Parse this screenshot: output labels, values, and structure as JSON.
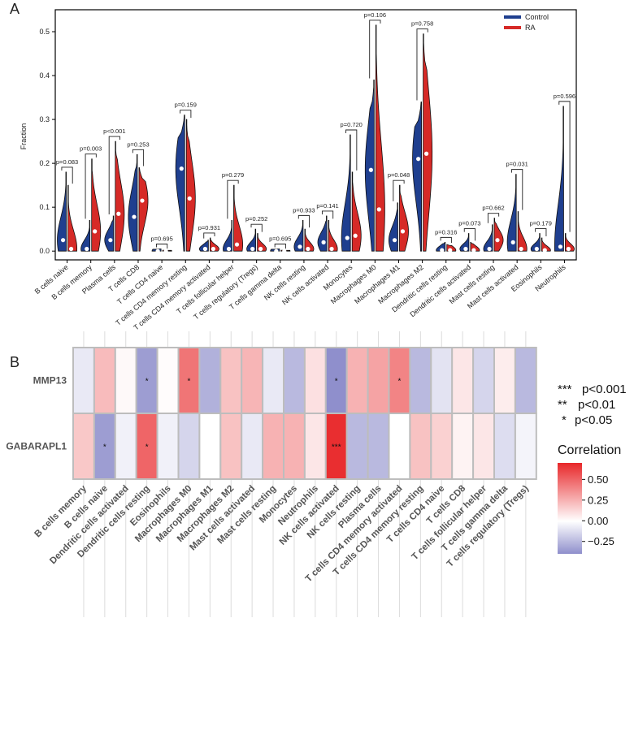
{
  "panels": {
    "a_label": "A",
    "b_label": "B"
  },
  "violin_legend": [
    {
      "name": "Control",
      "color": "#1f3f8f"
    },
    {
      "name": "RA",
      "color": "#d62a27"
    }
  ],
  "colors": {
    "control": "#1f3f8f",
    "ra": "#d62a27",
    "grid": "#dcdcdc"
  },
  "chart_data": [
    {
      "type": "violin",
      "title": "",
      "ylabel": "Fraction",
      "ylim": [
        -0.02,
        0.55
      ],
      "yticks": [
        "0.0",
        "0.1",
        "0.2",
        "0.3",
        "0.4",
        "0.5"
      ],
      "ytick_values": [
        0,
        0.1,
        0.2,
        0.3,
        0.4,
        0.5
      ],
      "groups": [
        "B cells naive",
        "B cells memory",
        "Plasma cells",
        "T cells CD8",
        "T cells CD4 naive",
        "T cells CD4 memory resting",
        "T cells CD4 memory activated",
        "T cells follicular helper",
        "T cells regulatory (Tregs)",
        "T cells gamma delta",
        "NK cells resting",
        "NK cells activated",
        "Monocytes",
        "Macrophages M0",
        "Macrophages M1",
        "Macrophages M2",
        "Dendritic cells resting",
        "Dendritic cells activated",
        "Mast cells resting",
        "Mast cells activated",
        "Eosinophils",
        "Neutrophils"
      ],
      "pvalues": [
        "p=0.083",
        "p=0.003",
        "p<0.001",
        "p=0.253",
        "p=0.695",
        "p=0.159",
        "p=0.931",
        "p=0.279",
        "p=0.252",
        "p=0.695",
        "p=0.933",
        "p=0.141",
        "p=0.720",
        "p=0.106",
        "p=0.048",
        "p=0.758",
        "p=0.316",
        "p=0.073",
        "p=0.662",
        "p=0.031",
        "p=0.179",
        "p=0.596"
      ],
      "control_max": [
        0.18,
        0.07,
        0.08,
        0.22,
        0.005,
        0.31,
        0.025,
        0.07,
        0.05,
        0.005,
        0.07,
        0.08,
        0.265,
        0.39,
        0.11,
        0.34,
        0.02,
        0.04,
        0.06,
        0.175,
        0.04,
        0.33
      ],
      "control_median": [
        0.025,
        0.005,
        0.025,
        0.078,
        0.0,
        0.188,
        0.005,
        0.005,
        0.005,
        0.0,
        0.01,
        0.02,
        0.03,
        0.185,
        0.025,
        0.21,
        0.002,
        0.005,
        0.005,
        0.02,
        0.005,
        0.01
      ],
      "ra_max": [
        0.15,
        0.21,
        0.25,
        0.19,
        0.002,
        0.3,
        0.03,
        0.15,
        0.04,
        0.002,
        0.05,
        0.07,
        0.18,
        0.515,
        0.15,
        0.495,
        0.015,
        0.02,
        0.075,
        0.09,
        0.03,
        0.04
      ],
      "ra_median": [
        0.005,
        0.045,
        0.085,
        0.115,
        0.0,
        0.12,
        0.005,
        0.015,
        0.005,
        0.0,
        0.005,
        0.005,
        0.035,
        0.095,
        0.045,
        0.222,
        0.002,
        0.002,
        0.025,
        0.005,
        0.002,
        0.005
      ]
    },
    {
      "type": "heatmap",
      "title": "",
      "rows": [
        "MMP13",
        "GABARAPL1"
      ],
      "columns": [
        "B cells memory",
        "B cells naive",
        "Dendritic cells activated",
        "Dendritic cells resting",
        "Eosinophils",
        "Macrophages M0",
        "Macrophages M1",
        "Macrophages M2",
        "Mast cells activated",
        "Mast cells resting",
        "Monocytes",
        "Neutrophils",
        "NK cells activated",
        "NK cells resting",
        "Plasma cells",
        "T cells CD4 memory activated",
        "T cells CD4 memory resting",
        "T cells CD4 naive",
        "T cells CD8",
        "T cells follicular helper",
        "T cells gamma delta",
        "T cells regulatory (Tregs)"
      ],
      "values": [
        [
          -0.08,
          0.22,
          0.02,
          -0.35,
          0.01,
          0.45,
          -0.28,
          0.2,
          0.24,
          -0.08,
          -0.25,
          0.1,
          -0.4,
          0.25,
          0.3,
          0.4,
          -0.25,
          -0.1,
          0.08,
          -0.15,
          0.06,
          -0.25
        ],
        [
          0.18,
          -0.35,
          -0.05,
          0.5,
          -0.05,
          -0.15,
          0.0,
          0.2,
          -0.08,
          0.25,
          0.25,
          0.08,
          0.68,
          -0.25,
          -0.25,
          0.0,
          0.2,
          0.15,
          0.04,
          0.08,
          -0.12,
          -0.04
        ]
      ],
      "significance": [
        [
          "",
          "",
          "",
          "*",
          "",
          "*",
          "",
          "",
          "",
          "",
          "",
          "",
          "*",
          "",
          "",
          "*",
          "",
          "",
          "",
          "",
          "",
          ""
        ],
        [
          "",
          "*",
          "",
          "*",
          "",
          "",
          "",
          "",
          "",
          "",
          "",
          "",
          "***",
          "",
          "",
          "",
          "",
          "",
          "",
          "",
          "",
          ""
        ]
      ],
      "colorbar": {
        "title": "Correlation",
        "range": [
          -0.4,
          0.7
        ],
        "ticks": [
          "0.50",
          "0.25",
          "0.00",
          "−0.25"
        ],
        "tick_values": [
          0.5,
          0.25,
          0.0,
          -0.25
        ]
      },
      "legend": [
        {
          "stars": "***",
          "text": "p<0.001"
        },
        {
          "stars": "**",
          "text": "p<0.01"
        },
        {
          "stars": "*",
          "text": "p<0.05"
        }
      ]
    }
  ]
}
